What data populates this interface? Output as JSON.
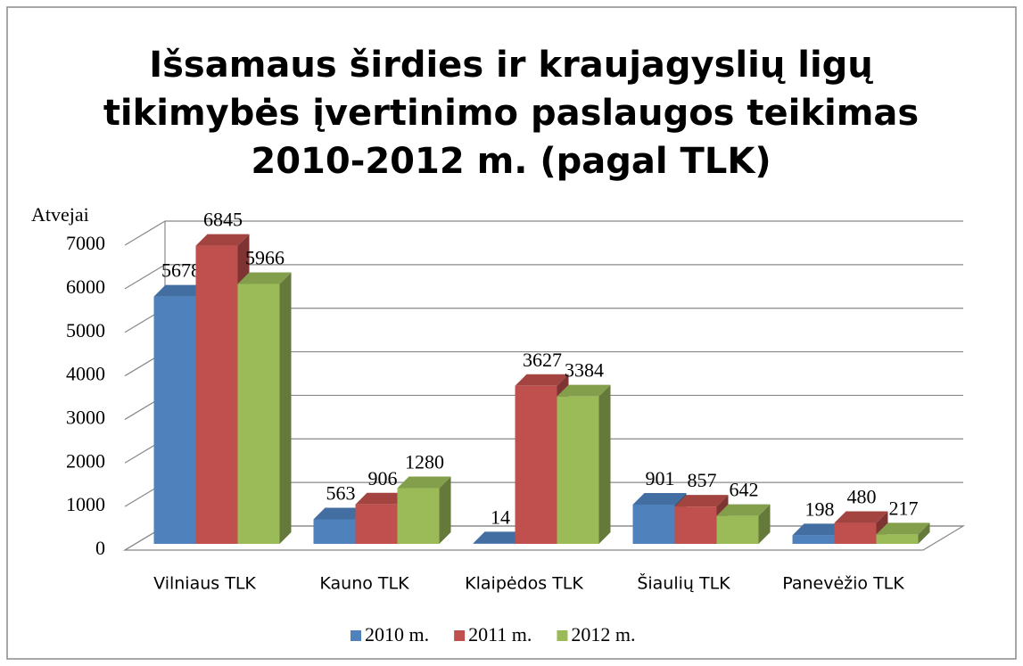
{
  "chart_data": {
    "type": "bar3d",
    "title": [
      "Išsamaus širdies ir kraujagyslių ligų",
      "tikimybės įvertinimo paslaugos teikimas",
      "2010-2012 m. (pagal TLK)"
    ],
    "y_label": "Atvejai",
    "categories": [
      "Vilniaus TLK",
      "Kauno TLK",
      "Klaipėdos TLK",
      "Šiaulių TLK",
      "Panevėžio TLK"
    ],
    "series": [
      {
        "name": "2010 m.",
        "color": "#4f81bd",
        "values": [
          5678,
          563,
          14,
          901,
          198
        ]
      },
      {
        "name": "2011 m.",
        "color": "#c0504d",
        "values": [
          6845,
          906,
          3627,
          857,
          480
        ]
      },
      {
        "name": "2012 m.",
        "color": "#9bbb59",
        "values": [
          5966,
          1280,
          3384,
          642,
          217
        ]
      }
    ],
    "ylim": [
      0,
      7000
    ],
    "yticks": [
      0,
      1000,
      2000,
      3000,
      4000,
      5000,
      6000,
      7000
    ],
    "grid": true,
    "legend": "bottom"
  }
}
